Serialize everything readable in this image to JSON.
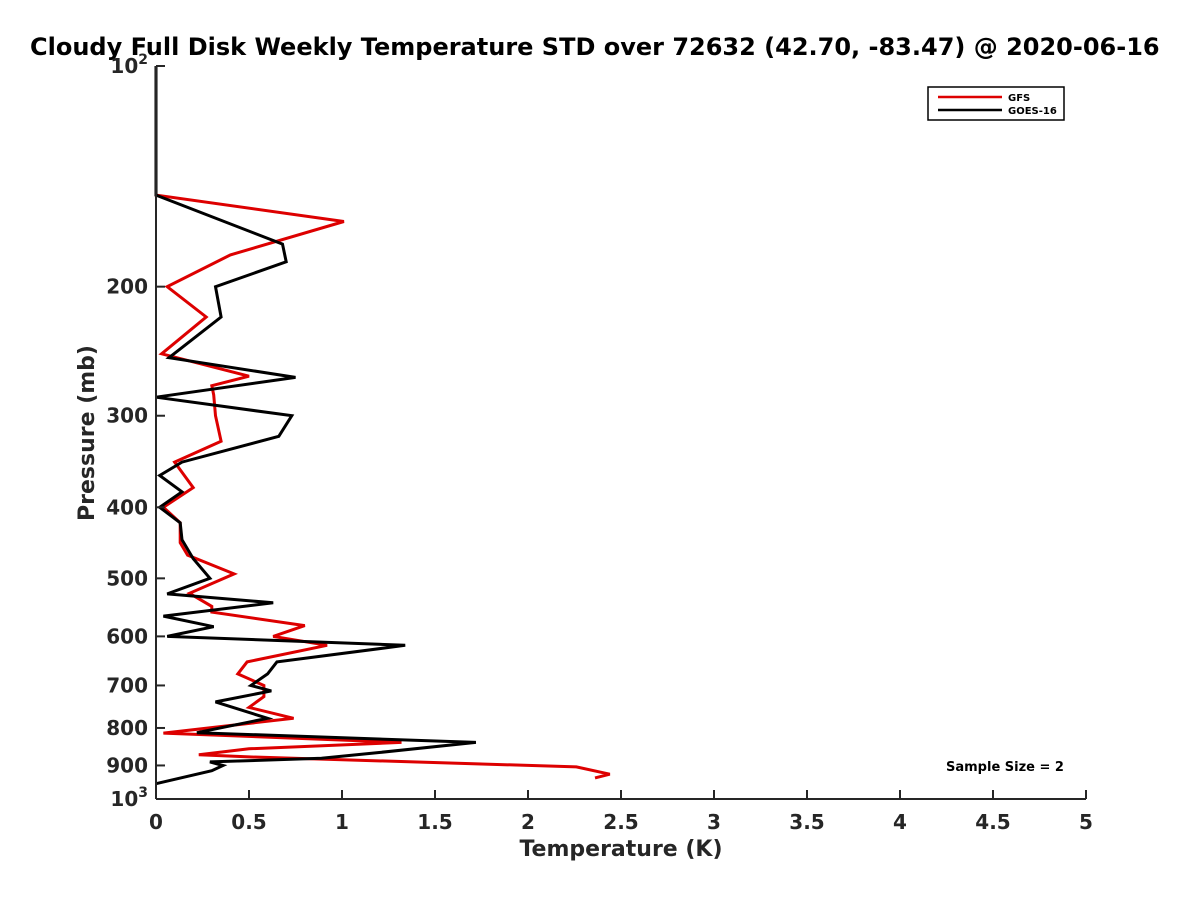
{
  "chart_data": {
    "type": "line",
    "title": "Cloudy Full Disk Weekly Temperature STD over 72632 (42.70, -83.47) @ 2020-06-16",
    "xlabel": "Temperature (K)",
    "ylabel": "Pressure (mb)",
    "xlim": [
      0,
      5
    ],
    "ylim": [
      1000,
      100
    ],
    "yscale": "log",
    "y_reversed": true,
    "grid": false,
    "legend_position": "top-right",
    "x_ticks": [
      "0",
      "0.5",
      "1",
      "1.5",
      "2",
      "2.5",
      "3",
      "3.5",
      "4",
      "4.5",
      "5"
    ],
    "x_tick_values": [
      0,
      0.5,
      1,
      1.5,
      2,
      2.5,
      3,
      3.5,
      4,
      4.5,
      5
    ],
    "y_ticks": [
      {
        "value": 100,
        "base": "10",
        "exp": "2"
      },
      {
        "value": 200,
        "label": "200"
      },
      {
        "value": 300,
        "label": "300"
      },
      {
        "value": 400,
        "label": "400"
      },
      {
        "value": 500,
        "label": "500"
      },
      {
        "value": 600,
        "label": "600"
      },
      {
        "value": 700,
        "label": "700"
      },
      {
        "value": 800,
        "label": "800"
      },
      {
        "value": 900,
        "label": "900"
      },
      {
        "value": 1000,
        "base": "10",
        "exp": "3"
      }
    ],
    "annotation": "Sample Size = 2",
    "series": [
      {
        "name": "GFS",
        "color": "#dd0000",
        "points": [
          [
            0,
            100
          ],
          [
            0,
            150
          ],
          [
            1.01,
            163
          ],
          [
            0.4,
            181
          ],
          [
            0.06,
            200
          ],
          [
            0.27,
            220
          ],
          [
            0.03,
            247
          ],
          [
            0.5,
            265
          ],
          [
            0.3,
            273
          ],
          [
            0.31,
            281
          ],
          [
            0.32,
            300
          ],
          [
            0.35,
            325
          ],
          [
            0.1,
            347
          ],
          [
            0.2,
            376
          ],
          [
            0.04,
            400
          ],
          [
            0.13,
            420
          ],
          [
            0.13,
            447
          ],
          [
            0.17,
            465
          ],
          [
            0.42,
            493
          ],
          [
            0.18,
            524
          ],
          [
            0.3,
            546
          ],
          [
            0.3,
            556
          ],
          [
            0.8,
            580
          ],
          [
            0.63,
            600
          ],
          [
            0.92,
            617
          ],
          [
            0.49,
            650
          ],
          [
            0.44,
            675
          ],
          [
            0.58,
            700
          ],
          [
            0.58,
            725
          ],
          [
            0.5,
            750
          ],
          [
            0.74,
            776
          ],
          [
            0.04,
            813
          ],
          [
            1.32,
            837
          ],
          [
            0.5,
            854
          ],
          [
            0.23,
            870
          ],
          [
            0.5,
            876
          ],
          [
            2.26,
            904
          ],
          [
            2.44,
            925
          ],
          [
            2.36,
            936
          ]
        ]
      },
      {
        "name": "GOES-16",
        "color": "#000000",
        "points": [
          [
            0,
            100
          ],
          [
            0,
            150
          ],
          [
            0.68,
            175
          ],
          [
            0.7,
            185
          ],
          [
            0.32,
            200
          ],
          [
            0.35,
            220
          ],
          [
            0.07,
            250
          ],
          [
            0.75,
            266
          ],
          [
            0,
            283
          ],
          [
            0.73,
            300
          ],
          [
            0.66,
            320
          ],
          [
            0.14,
            347
          ],
          [
            0.02,
            362
          ],
          [
            0.14,
            381
          ],
          [
            0.02,
            400
          ],
          [
            0.13,
            420
          ],
          [
            0.14,
            443
          ],
          [
            0.2,
            470
          ],
          [
            0.29,
            500
          ],
          [
            0.06,
            525
          ],
          [
            0.63,
            540
          ],
          [
            0.04,
            563
          ],
          [
            0.31,
            582
          ],
          [
            0.06,
            600
          ],
          [
            1.34,
            617
          ],
          [
            0.65,
            650
          ],
          [
            0.6,
            675
          ],
          [
            0.51,
            700
          ],
          [
            0.62,
            712
          ],
          [
            0.32,
            737
          ],
          [
            0.6,
            776
          ],
          [
            0.22,
            812
          ],
          [
            1.72,
            837
          ],
          [
            1.2,
            864
          ],
          [
            0.89,
            880
          ],
          [
            0.29,
            890
          ],
          [
            0.36,
            900
          ],
          [
            0.3,
            915
          ],
          [
            0,
            953
          ]
        ]
      }
    ]
  }
}
